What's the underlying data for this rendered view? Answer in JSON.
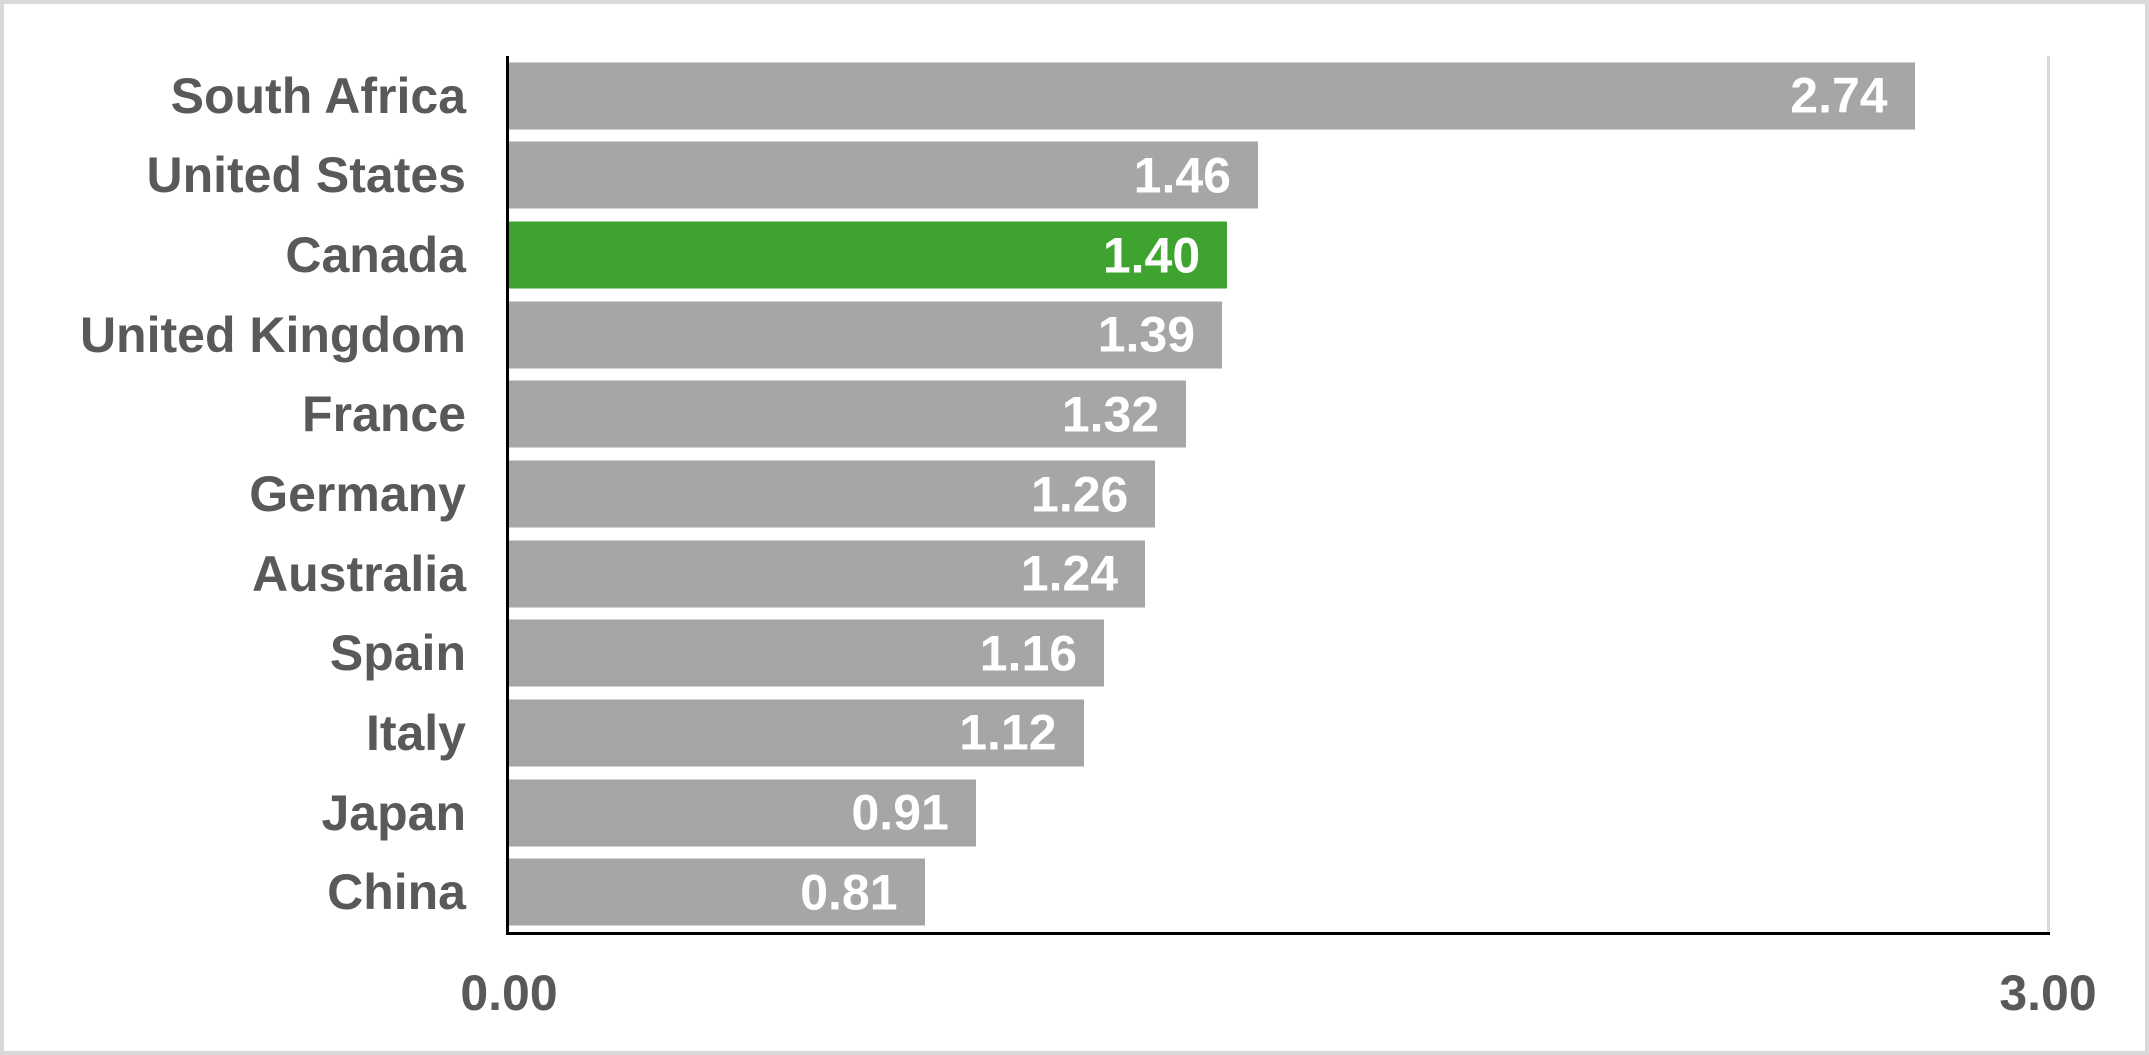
{
  "chart_data": {
    "type": "bar",
    "orientation": "horizontal",
    "title": "",
    "xlabel": "",
    "ylabel": "",
    "categories": [
      "South Africa",
      "United States",
      "Canada",
      "United Kingdom",
      "France",
      "Germany",
      "Australia",
      "Spain",
      "Italy",
      "Japan",
      "China"
    ],
    "values": [
      2.74,
      1.46,
      1.4,
      1.39,
      1.32,
      1.26,
      1.24,
      1.16,
      1.12,
      0.91,
      0.81
    ],
    "value_labels": [
      "2.74",
      "1.46",
      "1.40",
      "1.39",
      "1.32",
      "1.26",
      "1.24",
      "1.16",
      "1.12",
      "0.91",
      "0.81"
    ],
    "highlighted_category": "Canada",
    "highlight_index": 2,
    "xlim": [
      0,
      3
    ],
    "x_ticks": [
      "0.00",
      "3.00"
    ],
    "grid": "single vertical gridline at x=3.00",
    "legend": false,
    "colors": {
      "bar": "#a6a6a6",
      "highlight_bar": "#3ea32f",
      "value_label": "#ffffff",
      "category_label": "#595959",
      "tick_label": "#595959",
      "axis_line": "#000000",
      "gridline": "#d9d9d9",
      "frame_border": "#d9d9d9",
      "background": "#ffffff"
    }
  }
}
